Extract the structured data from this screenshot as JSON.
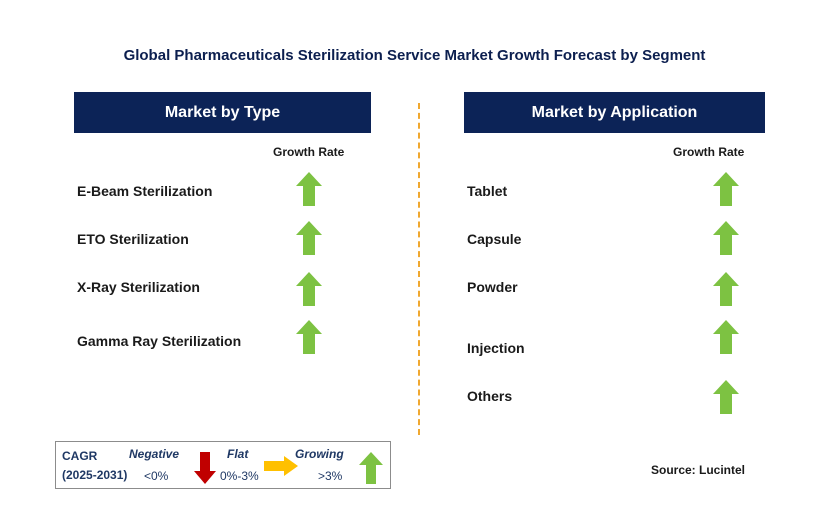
{
  "title": "Global Pharmaceuticals Sterilization Service Market Growth Forecast by Segment",
  "left_panel": {
    "header": "Market by Type",
    "growth_label": "Growth Rate",
    "items": [
      {
        "label": "E-Beam Sterilization",
        "trend": "growing"
      },
      {
        "label": "ETO Sterilization",
        "trend": "growing"
      },
      {
        "label": "X-Ray Sterilization",
        "trend": "growing"
      },
      {
        "label": "Gamma Ray Sterilization",
        "trend": "growing"
      }
    ]
  },
  "right_panel": {
    "header": "Market by Application",
    "growth_label": "Growth Rate",
    "items": [
      {
        "label": "Tablet",
        "trend": "growing"
      },
      {
        "label": "Capsule",
        "trend": "growing"
      },
      {
        "label": "Powder",
        "trend": "growing"
      },
      {
        "label": "Injection",
        "trend": "growing"
      },
      {
        "label": "Others",
        "trend": "growing"
      }
    ]
  },
  "legend": {
    "cagr": "CAGR",
    "period": "(2025-2031)",
    "negative": {
      "label": "Negative",
      "range": "<0%"
    },
    "flat": {
      "label": "Flat",
      "range": "0%-3%"
    },
    "growing": {
      "label": "Growing",
      "range": ">3%"
    }
  },
  "source": "Source: Lucintel",
  "colors": {
    "header_bg": "#0c2357",
    "growing_arrow": "#7dc242",
    "negative_arrow": "#c00000",
    "flat_arrow": "#ffc000",
    "divider": "#f0a830"
  }
}
